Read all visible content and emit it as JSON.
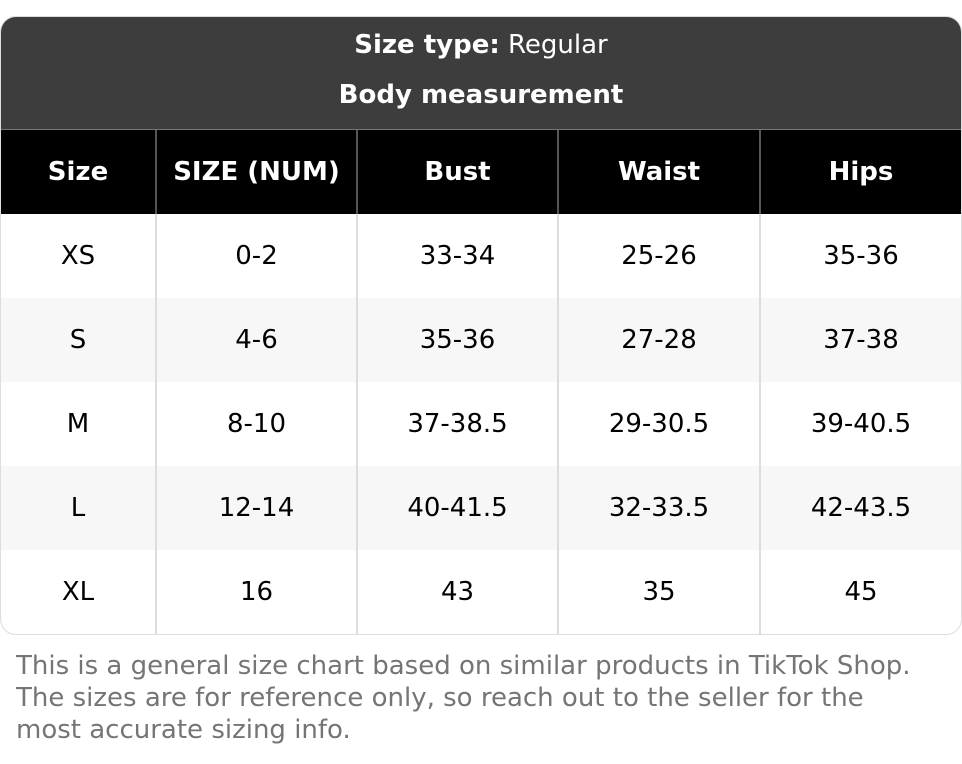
{
  "header": {
    "size_type_label": "Size type:",
    "size_type_value": "Regular",
    "section_title": "Body measurement"
  },
  "columns": [
    "Size",
    "SIZE (NUM)",
    "Bust",
    "Waist",
    "Hips"
  ],
  "rows": [
    [
      "XS",
      "0-2",
      "33-34",
      "25-26",
      "35-36"
    ],
    [
      "S",
      "4-6",
      "35-36",
      "27-28",
      "37-38"
    ],
    [
      "M",
      "8-10",
      "37-38.5",
      "29-30.5",
      "39-40.5"
    ],
    [
      "L",
      "12-14",
      "40-41.5",
      "32-33.5",
      "42-43.5"
    ],
    [
      "XL",
      "16",
      "43",
      "35",
      "45"
    ]
  ],
  "note": "This is a general size chart based on similar products in TikTok Shop. The sizes are for reference only, so reach out to the seller for the most accurate sizing info."
}
